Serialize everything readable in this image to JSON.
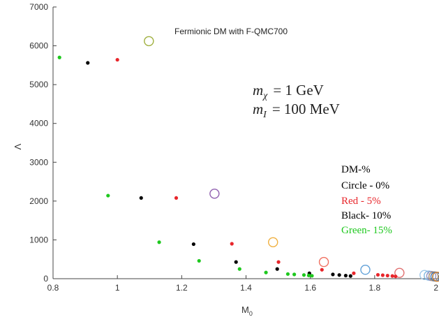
{
  "chart_data": {
    "type": "scatter",
    "title": "Fermionic DM with F-QMC700",
    "xlabel": "M",
    "xlabel_sub": "0",
    "ylabel": "Λ",
    "xlim": [
      0.8,
      2.0
    ],
    "ylim": [
      0,
      7000
    ],
    "x_ticks": [
      "0.8",
      "1",
      "1.2",
      "1.4",
      "1.6",
      "1.8",
      "2"
    ],
    "y_ticks": [
      "0",
      "1000",
      "2000",
      "3000",
      "4000",
      "5000",
      "6000",
      "7000"
    ],
    "grid": false,
    "annotations": {
      "m_chi": "= 1  GeV",
      "m_i": "= 100  MeV"
    },
    "legend": {
      "position": "right",
      "title": "DM-%",
      "entries": [
        {
          "label": "Circle - 0%",
          "color": "#000000"
        },
        {
          "label": "Red - 5%",
          "color": "#e8262b"
        },
        {
          "label": "Black- 10%",
          "color": "#000000"
        },
        {
          "label": "Green- 15%",
          "color": "#1ec81e"
        }
      ]
    },
    "series": [
      {
        "marker": "open-circle",
        "points": [
          {
            "x": 1.098,
            "y": 6120,
            "color": "#a0b040"
          },
          {
            "x": 1.302,
            "y": 2190,
            "color": "#9060b0"
          },
          {
            "x": 1.484,
            "y": 940,
            "color": "#f0b040"
          },
          {
            "x": 1.642,
            "y": 430,
            "color": "#f07060"
          },
          {
            "x": 1.771,
            "y": 230,
            "color": "#60a0d8"
          },
          {
            "x": 1.877,
            "y": 150,
            "color": "#e07070"
          },
          {
            "x": 1.955,
            "y": 95,
            "color": "#a0c8e8"
          },
          {
            "x": 1.968,
            "y": 80,
            "color": "#80b8e0"
          },
          {
            "x": 1.976,
            "y": 70,
            "color": "#9090c0"
          },
          {
            "x": 1.983,
            "y": 60,
            "color": "#b09070"
          },
          {
            "x": 1.989,
            "y": 55,
            "color": "#4070b0"
          },
          {
            "x": 1.994,
            "y": 50,
            "color": "#d08030"
          }
        ]
      },
      {
        "marker": "dot",
        "color": "#e8262b",
        "points": [
          {
            "x": 1.0,
            "y": 5640
          },
          {
            "x": 1.183,
            "y": 2080
          },
          {
            "x": 1.356,
            "y": 900
          },
          {
            "x": 1.501,
            "y": 430
          },
          {
            "x": 1.636,
            "y": 230
          },
          {
            "x": 1.735,
            "y": 140
          },
          {
            "x": 1.81,
            "y": 100
          },
          {
            "x": 1.825,
            "y": 90
          },
          {
            "x": 1.84,
            "y": 80
          },
          {
            "x": 1.855,
            "y": 70
          },
          {
            "x": 1.865,
            "y": 60
          }
        ]
      },
      {
        "marker": "dot",
        "color": "#000000",
        "points": [
          {
            "x": 0.908,
            "y": 5560
          },
          {
            "x": 1.074,
            "y": 2080
          },
          {
            "x": 1.237,
            "y": 890
          },
          {
            "x": 1.369,
            "y": 430
          },
          {
            "x": 1.497,
            "y": 250
          },
          {
            "x": 1.597,
            "y": 140
          },
          {
            "x": 1.67,
            "y": 110
          },
          {
            "x": 1.69,
            "y": 95
          },
          {
            "x": 1.71,
            "y": 80
          },
          {
            "x": 1.725,
            "y": 70
          }
        ]
      },
      {
        "marker": "dot",
        "color": "#1ec81e",
        "points": [
          {
            "x": 0.82,
            "y": 5700
          },
          {
            "x": 0.971,
            "y": 2140
          },
          {
            "x": 1.13,
            "y": 940
          },
          {
            "x": 1.254,
            "y": 460
          },
          {
            "x": 1.38,
            "y": 250
          },
          {
            "x": 1.462,
            "y": 160
          },
          {
            "x": 1.53,
            "y": 120
          },
          {
            "x": 1.55,
            "y": 110
          },
          {
            "x": 1.58,
            "y": 95
          },
          {
            "x": 1.595,
            "y": 85
          },
          {
            "x": 1.605,
            "y": 75
          }
        ]
      }
    ]
  }
}
